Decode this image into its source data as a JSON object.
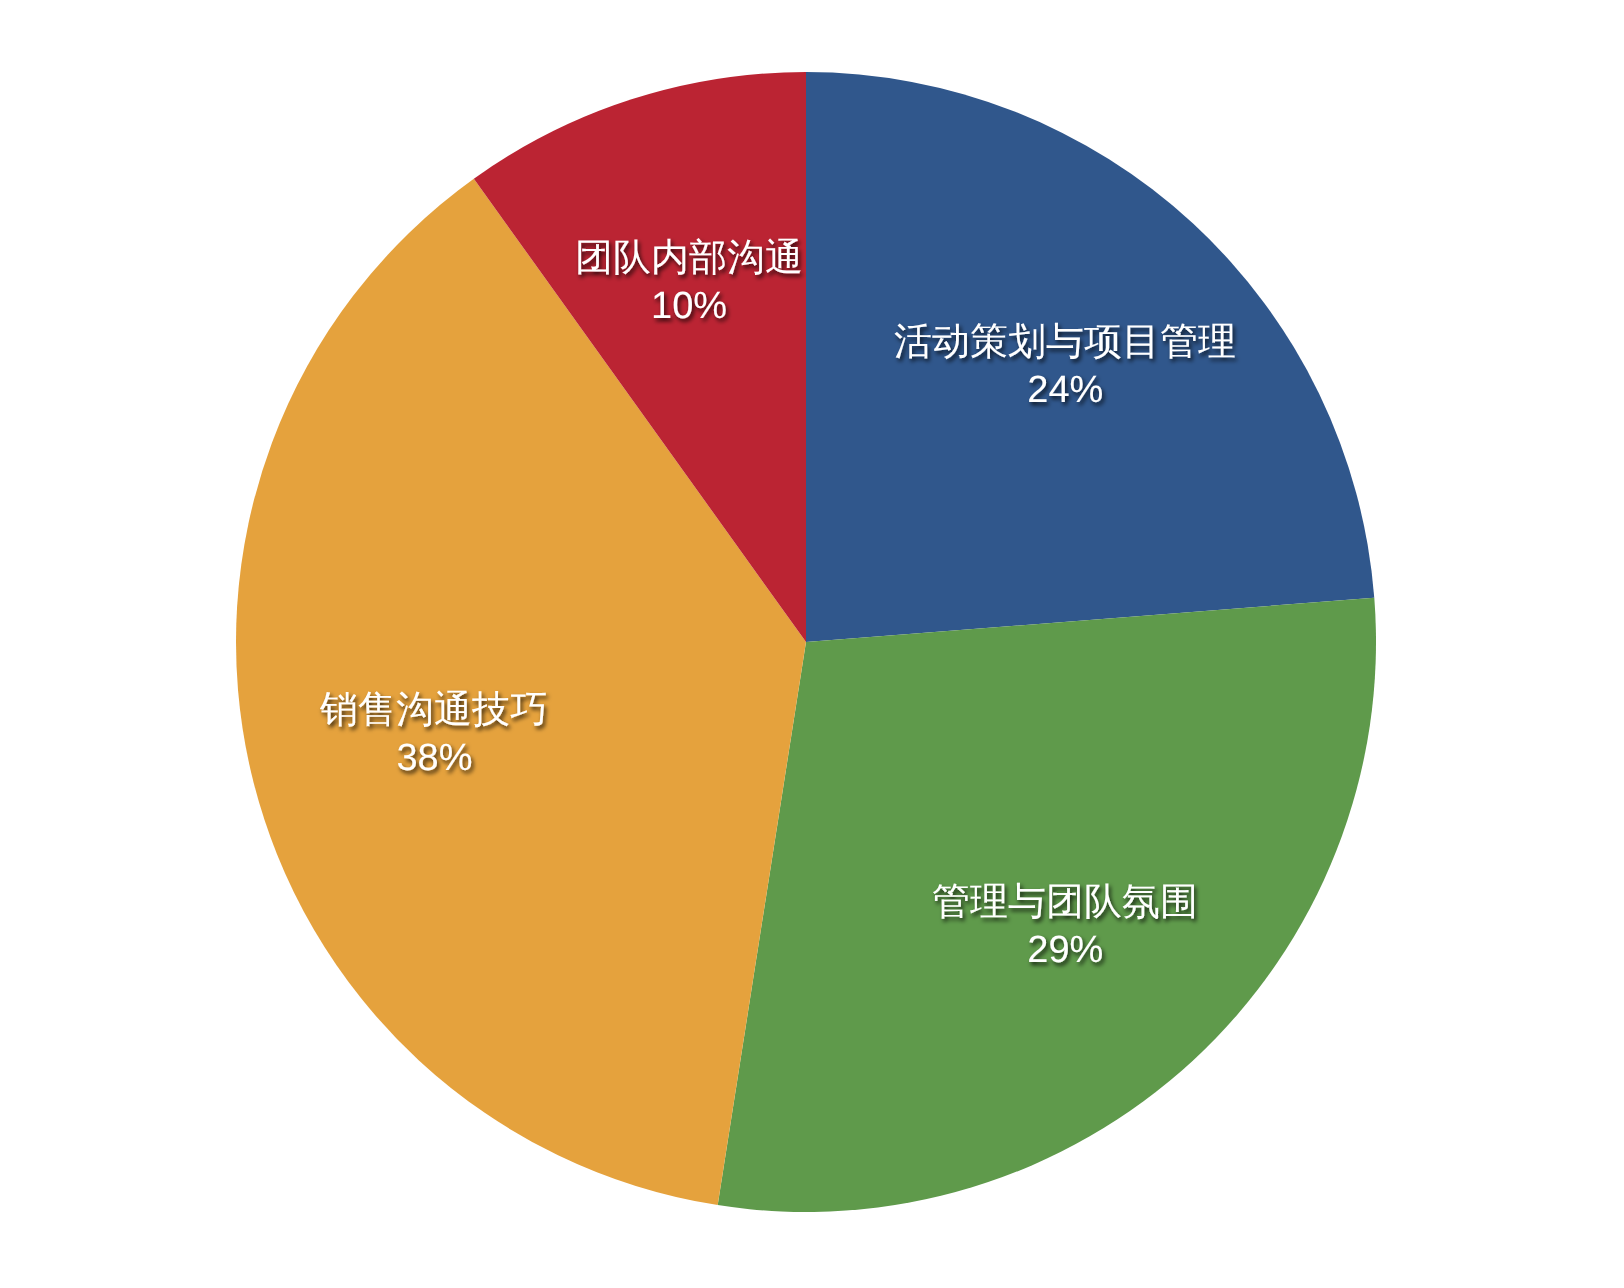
{
  "chart_data": {
    "type": "pie",
    "categories": [
      "活动策划与项目管理",
      "管理与团队氛围",
      "销售沟通技巧",
      "团队内部沟通"
    ],
    "values": [
      24,
      29,
      38,
      10
    ],
    "value_labels": [
      "24%",
      "29%",
      "38%",
      "10%"
    ],
    "colors": [
      "#30578c",
      "#5f9a4b",
      "#e5a23d",
      "#bb2433"
    ]
  }
}
